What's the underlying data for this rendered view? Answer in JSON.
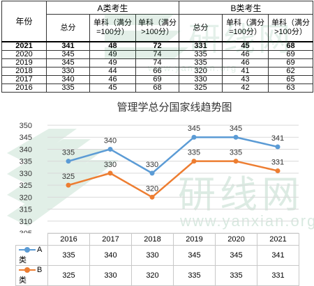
{
  "table": {
    "year_header": "年份",
    "group_a": "A类考生",
    "group_b": "B类考生",
    "col_total": "总分",
    "col_single_a": "单科（满分=100分）",
    "col_single_b": "单科（满分>100分）",
    "rows": [
      {
        "year": "2021",
        "a_total": "341",
        "a_s1": "48",
        "a_s2": "72",
        "b_total": "331",
        "b_s1": "45",
        "b_s2": "68",
        "bold": true
      },
      {
        "year": "2020",
        "a_total": "345",
        "a_s1": "49",
        "a_s2": "74",
        "b_total": "335",
        "b_s1": "46",
        "b_s2": "69"
      },
      {
        "year": "2019",
        "a_total": "345",
        "a_s1": "49",
        "a_s2": "74",
        "b_total": "335",
        "b_s1": "46",
        "b_s2": "69"
      },
      {
        "year": "2018",
        "a_total": "330",
        "a_s1": "44",
        "a_s2": "66",
        "b_total": "320",
        "b_s1": "41",
        "b_s2": "62"
      },
      {
        "year": "2017",
        "a_total": "340",
        "a_s1": "46",
        "a_s2": "69",
        "b_total": "330",
        "b_s1": "43",
        "b_s2": "65"
      },
      {
        "year": "2016",
        "a_total": "335",
        "a_s1": "45",
        "a_s2": "68",
        "b_total": "325",
        "b_s1": "42",
        "b_s2": "63"
      }
    ]
  },
  "watermark": {
    "brand_cn": "研线网",
    "url": "www.yanxian.org",
    "color": "#2e8b57"
  },
  "chart_data": {
    "type": "line",
    "title": "管理学总分国家线趋势图",
    "categories": [
      "2016",
      "2017",
      "2018",
      "2019",
      "2020",
      "2021"
    ],
    "series": [
      {
        "name": "A类",
        "values": [
          335,
          340,
          330,
          345,
          345,
          341
        ],
        "color": "#5b9bd5"
      },
      {
        "name": "B类",
        "values": [
          325,
          330,
          320,
          335,
          335,
          331
        ],
        "color": "#ed7d31"
      }
    ],
    "ylim": [
      305,
      350
    ],
    "y_ticks": [
      305,
      310,
      315,
      320,
      325,
      330,
      335,
      340,
      345,
      350
    ],
    "grid": true,
    "legend": "data-table-left",
    "data_labels": true
  }
}
